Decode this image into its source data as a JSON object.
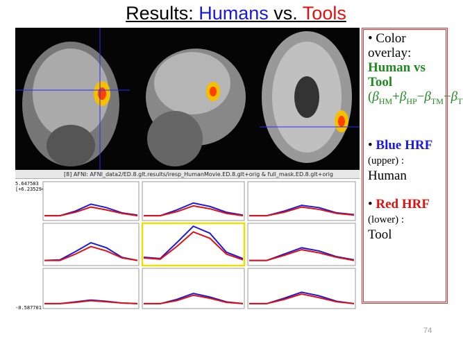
{
  "title": {
    "prefix": "Results: ",
    "humans": "Humans",
    "middle": " vs. ",
    "tools": "Tools"
  },
  "window_title": "[8] AFNI: AFNI_data2/ED.8.glt.results/iresp_HumanMovie.ED.8.glt+orig & full_mask.ED.8.glt+orig",
  "graph": {
    "ylim": [
      -0.587701,
      5.647583
    ],
    "yticks": [
      -0.587701,
      5.647583
    ],
    "range_note": "[+6.235294]",
    "selected_panel": 4,
    "blue_color": "#1a1adc",
    "red_color": "#e01010",
    "panels": [
      {
        "blue": [
          0,
          0,
          0.8,
          2.0,
          1.4,
          0.5,
          0.1
        ],
        "red": [
          0,
          0,
          0.6,
          1.5,
          1.0,
          0.4,
          0
        ]
      },
      {
        "blue": [
          0,
          0,
          1.0,
          2.2,
          1.6,
          0.6,
          0.1
        ],
        "red": [
          0,
          0,
          0.7,
          1.7,
          1.2,
          0.4,
          0
        ]
      },
      {
        "blue": [
          0,
          0,
          0.8,
          1.8,
          1.4,
          0.5,
          0.2
        ],
        "red": [
          0,
          0,
          0.6,
          1.5,
          1.1,
          0.4,
          0.1
        ]
      },
      {
        "blue": [
          0,
          0.1,
          1.4,
          2.8,
          2.0,
          0.5,
          0
        ],
        "red": [
          0,
          0,
          1.0,
          2.2,
          1.5,
          0.4,
          0
        ]
      },
      {
        "blue": [
          0.5,
          0.3,
          2.8,
          5.4,
          4.3,
          1.3,
          0.3
        ],
        "red": [
          0.4,
          0.2,
          2.2,
          4.5,
          3.5,
          1.0,
          0.1
        ]
      },
      {
        "blue": [
          0,
          0,
          1.0,
          2.0,
          1.5,
          0.6,
          0.1
        ],
        "red": [
          0,
          0,
          0.8,
          1.7,
          1.2,
          0.5,
          0
        ]
      },
      {
        "blue": [
          0,
          0,
          0.3,
          0.6,
          0.4,
          0.1,
          0
        ],
        "red": [
          0,
          0,
          0.2,
          0.5,
          0.3,
          0.1,
          0
        ]
      },
      {
        "blue": [
          0,
          0,
          0.7,
          1.7,
          1.1,
          0.3,
          0
        ],
        "red": [
          0,
          0,
          0.5,
          1.4,
          0.9,
          0.2,
          0
        ]
      },
      {
        "blue": [
          0,
          0,
          0.9,
          1.9,
          1.3,
          0.4,
          0
        ],
        "red": [
          0,
          0,
          0.7,
          1.6,
          1.0,
          0.3,
          0
        ]
      }
    ]
  },
  "sidebar": {
    "item1": {
      "bullet": "•",
      "text": "Color overlay:",
      "highlight": "Human vs Tool",
      "formula": {
        "open": "(",
        "close": ")",
        "sym": "β",
        "subs": [
          "HM",
          "HP",
          "TM",
          "TP"
        ],
        "ops": [
          "+",
          "−",
          "−"
        ]
      }
    },
    "item2": {
      "bullet": "•",
      "highlight": "Blue HRF",
      "note": "(upper) :",
      "label": "Human"
    },
    "item3": {
      "bullet": "•",
      "highlight": "Red HRF",
      "note": "(lower) :",
      "label": "Tool"
    }
  },
  "page_number": "74"
}
